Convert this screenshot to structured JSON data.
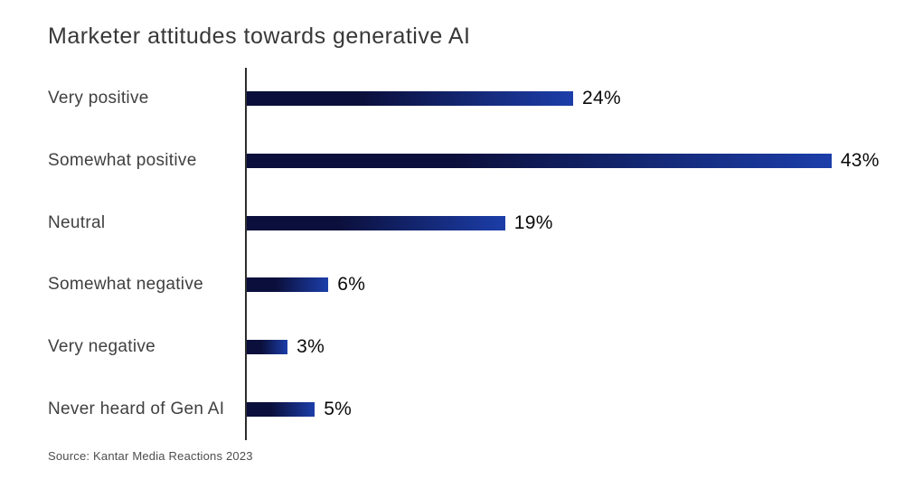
{
  "chart_data": {
    "type": "bar",
    "orientation": "horizontal",
    "title": "Marketer attitudes towards generative AI",
    "categories": [
      "Very positive",
      "Somewhat positive",
      "Neutral",
      "Somewhat negative",
      "Very negative",
      "Never heard of Gen AI"
    ],
    "values": [
      24,
      43,
      19,
      6,
      3,
      5
    ],
    "value_labels": [
      "24%",
      "43%",
      "19%",
      "6%",
      "3%",
      "5%"
    ],
    "value_suffix": "%",
    "xlabel": "",
    "ylabel": "",
    "xlim": [
      0,
      47
    ],
    "grid": false,
    "legend": false,
    "bar_gradient_start": "#0b0f3b",
    "bar_gradient_end": "#1c3ea9",
    "axis_color": "#2d2d2d"
  },
  "source_note": "Source: Kantar Media Reactions 2023"
}
